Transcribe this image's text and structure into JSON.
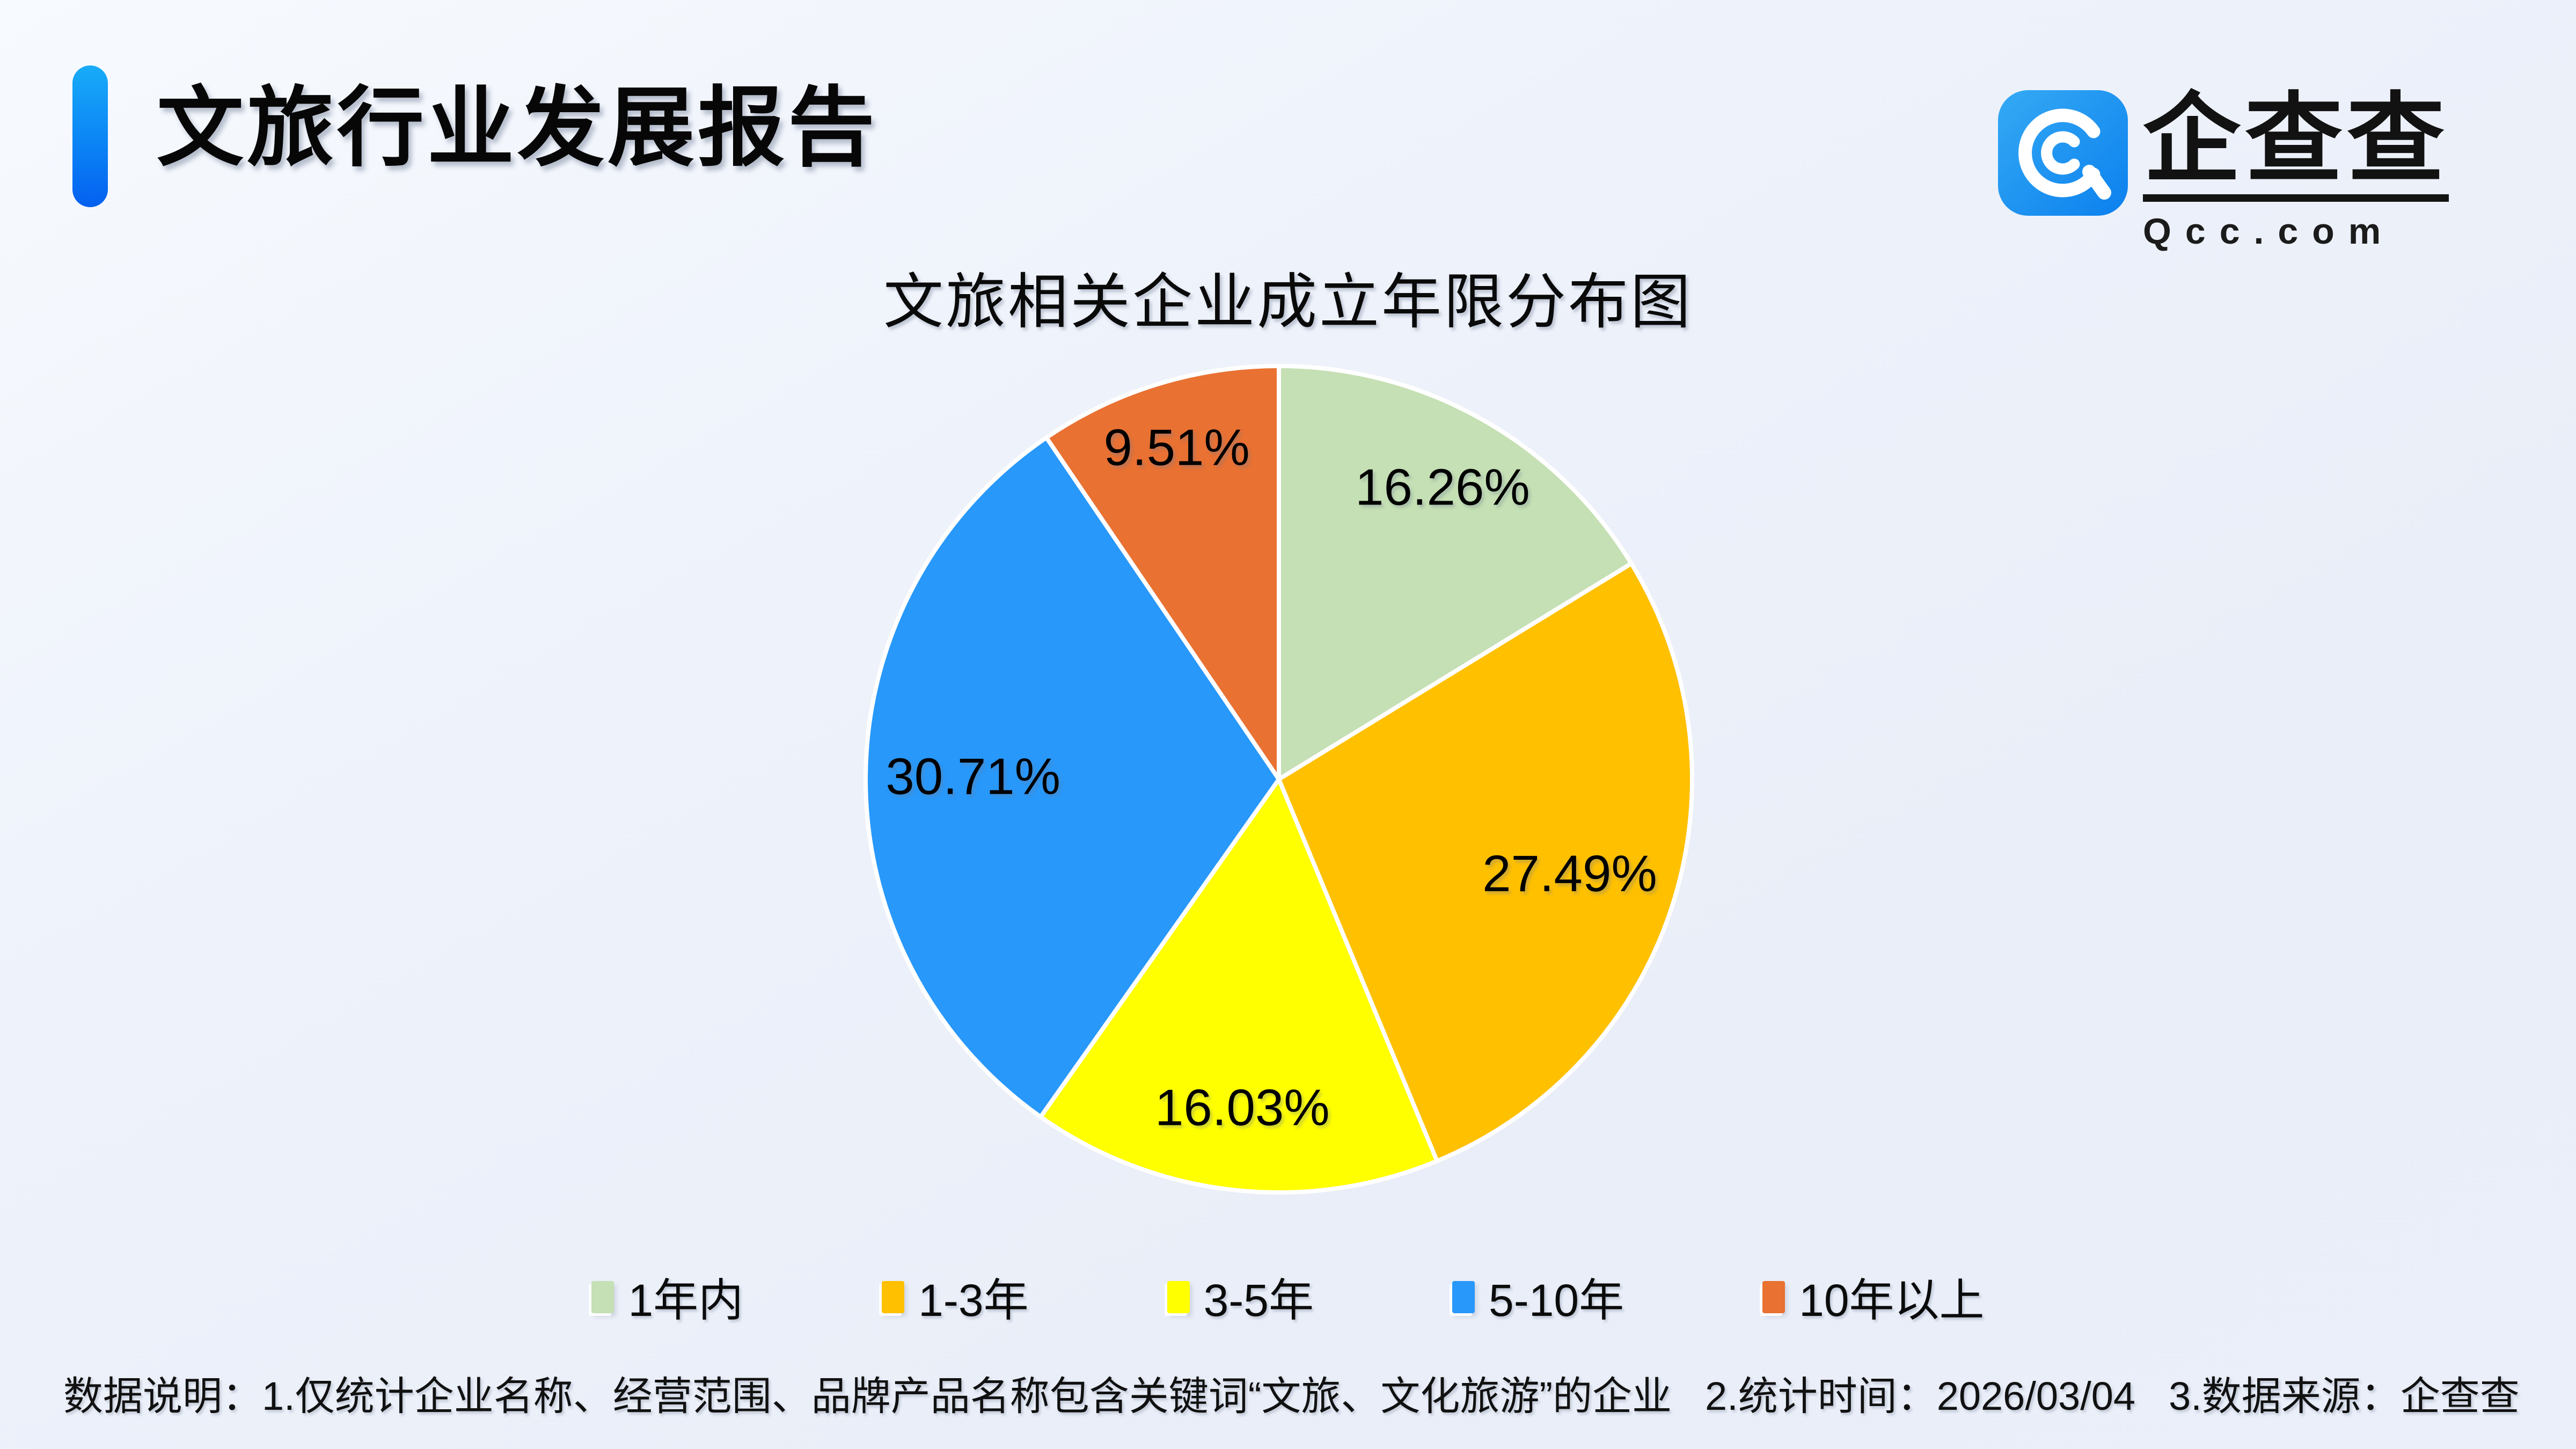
{
  "page": {
    "background": "#EDF1F9"
  },
  "header": {
    "title": "文旅行业发展报告",
    "accent_color": "#0A7BF3"
  },
  "logo": {
    "name": "企查查",
    "domain": "Qcc.com",
    "icon": "qcc-spiral-q-icon",
    "icon_color": "#1E96F2"
  },
  "chart_data": {
    "type": "pie",
    "title": "文旅相关企业成立年限分布图",
    "categories": [
      "1年内",
      "1-3年",
      "3-5年",
      "5-10年",
      "10年以上"
    ],
    "values": [
      16.26,
      27.49,
      16.03,
      30.71,
      9.51
    ],
    "labels": [
      "16.26%",
      "27.49%",
      "16.03%",
      "30.71%",
      "9.51%"
    ],
    "colors": [
      "#C5E0B4",
      "#FFC000",
      "#FFFF00",
      "#2898FA",
      "#E97132"
    ],
    "start_angle": "top",
    "direction": "clockwise",
    "slice_border_color": "#FFFFFF",
    "legend_position": "bottom",
    "label_radius_fraction": [
      0.81,
      0.74,
      0.8,
      0.74,
      0.84
    ]
  },
  "footer": {
    "label": "数据说明：",
    "notes": [
      "1.仅统计企业名称、经营范围、品牌产品名称包含关键词“文旅、文化旅游”的企业",
      "2.统计时间：2026/03/04",
      "3.数据来源：企查查"
    ]
  }
}
